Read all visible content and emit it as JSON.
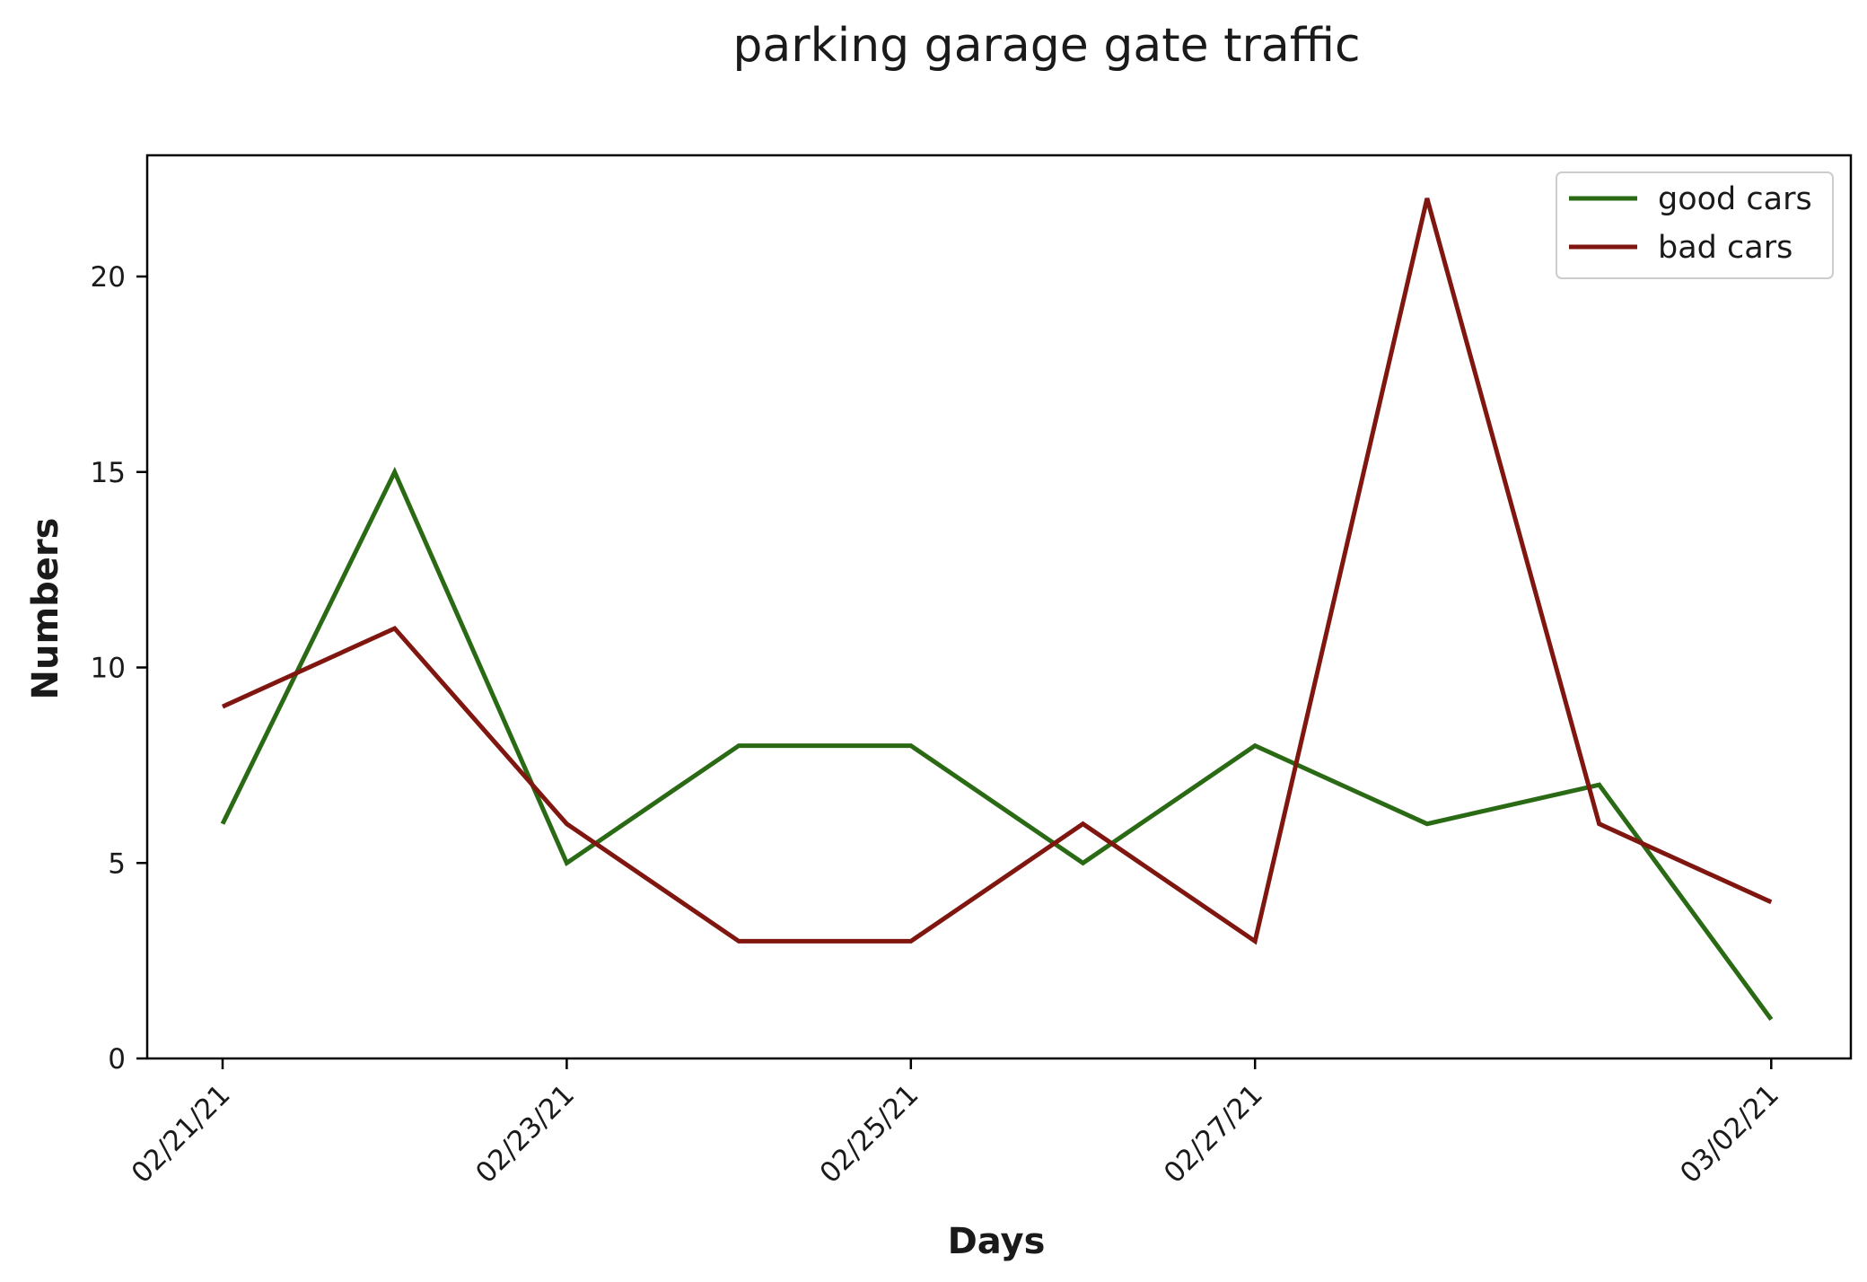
{
  "chart_data": {
    "type": "line",
    "title": "parking garage gate traffic",
    "xlabel": "Days",
    "ylabel": "Numbers",
    "x": [
      "02/21/21",
      "02/22/21",
      "02/23/21",
      "02/24/21",
      "02/25/21",
      "02/26/21",
      "02/27/21",
      "02/28/21",
      "03/01/21",
      "03/02/21"
    ],
    "x_tick_labels": [
      "02/21/21",
      "02/23/21",
      "02/25/21",
      "02/27/21",
      "03/02/21"
    ],
    "y_ticks": [
      0,
      5,
      10,
      15,
      20
    ],
    "ylim": [
      0,
      23.1
    ],
    "grid": false,
    "legend_position": "top-right",
    "series": [
      {
        "name": "good cars",
        "color": "#2a6a14",
        "values": [
          6,
          15,
          5,
          8,
          8,
          5,
          8,
          6,
          7,
          1
        ]
      },
      {
        "name": "bad cars",
        "color": "#7f1610",
        "values": [
          9,
          11,
          6,
          3,
          3,
          6,
          3,
          22,
          6,
          4
        ]
      }
    ]
  }
}
